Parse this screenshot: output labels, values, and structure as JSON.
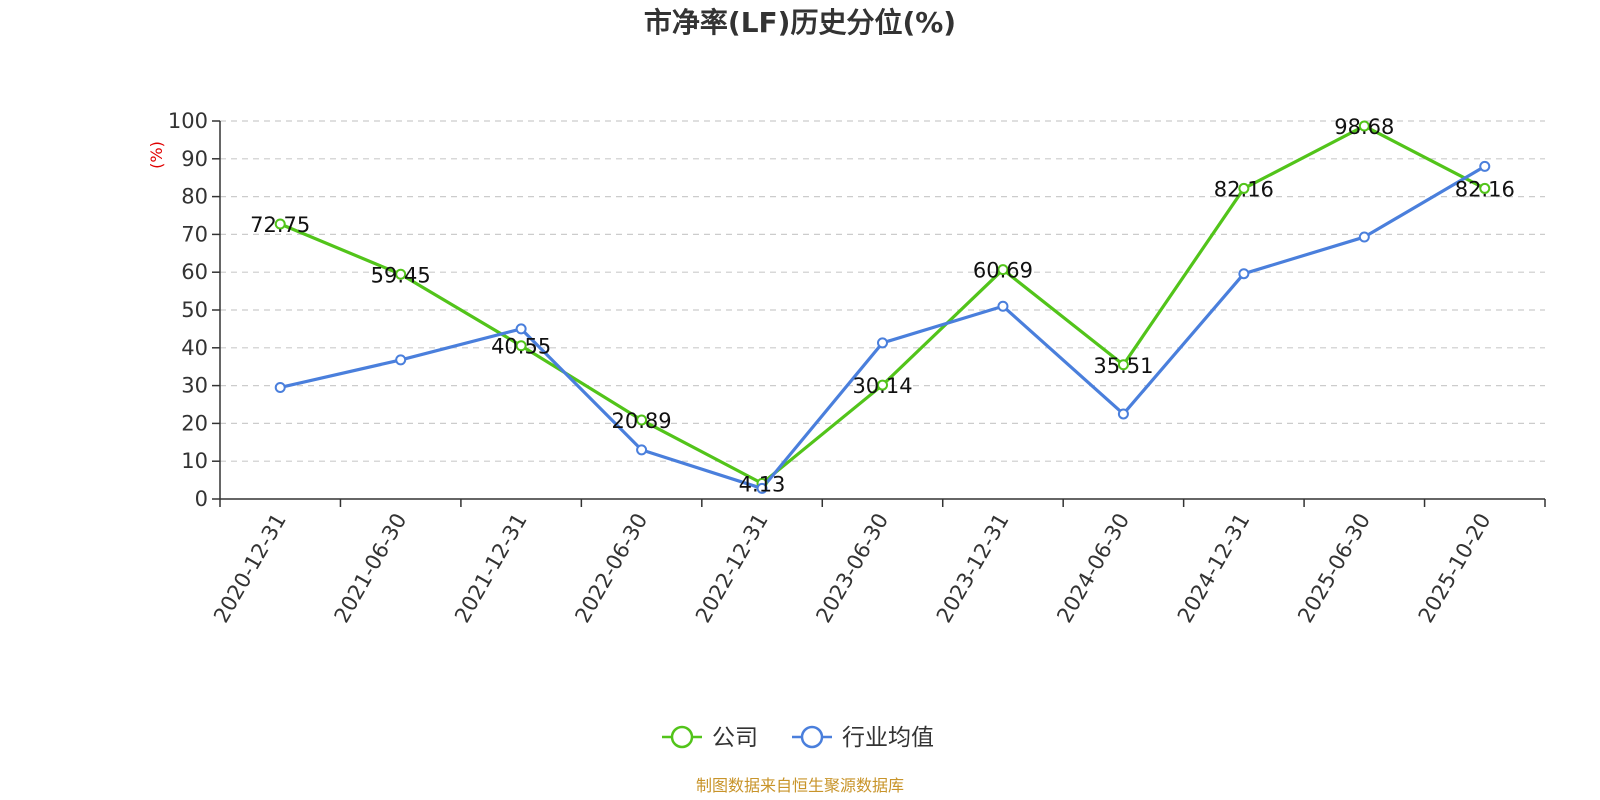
{
  "source_text": "制图数据来自恒生聚源数据库",
  "source_color": "#c8942a",
  "ylabel_color": "#e00000",
  "chart_data": {
    "type": "line",
    "title": "市净率(LF)历史分位(%)",
    "xlabel": "",
    "ylabel": "(%)",
    "ylim": [
      0,
      100
    ],
    "yticks": [
      0,
      10,
      20,
      30,
      40,
      50,
      60,
      70,
      80,
      90,
      100
    ],
    "grid": true,
    "legend_position": "bottom",
    "x": [
      "2020-12-31",
      "2021-06-30",
      "2021-12-31",
      "2022-06-30",
      "2022-12-31",
      "2023-06-30",
      "2023-12-31",
      "2024-06-30",
      "2024-12-31",
      "2025-06-30",
      "2025-10-20"
    ],
    "series": [
      {
        "name": "公司",
        "color": "#52c41a",
        "values": [
          72.75,
          59.45,
          40.55,
          20.89,
          4.13,
          30.14,
          60.69,
          35.51,
          82.16,
          98.68,
          82.16
        ],
        "data_labels": [
          "72.75",
          "59.45",
          "40.55",
          "20.89",
          "4.13",
          "30.14",
          "60.69",
          "35.51",
          "82.16",
          "98.68",
          "82.16"
        ]
      },
      {
        "name": "行业均值",
        "color": "#4a7fdc",
        "values": [
          29.5,
          36.8,
          45.0,
          13.0,
          2.8,
          41.3,
          51.0,
          22.5,
          59.6,
          69.3,
          88.0
        ]
      }
    ]
  }
}
